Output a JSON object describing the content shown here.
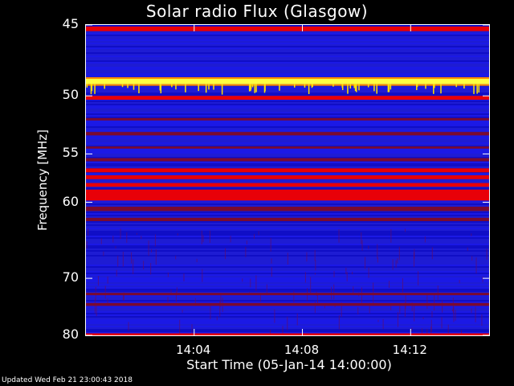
{
  "chart_data": {
    "type": "heatmap",
    "title": "Solar radio Flux (Glasgow)",
    "ylabel": "Frequency [MHz]",
    "xlabel": "Start Time (05-Jan-14 14:00:00)",
    "yticks": [
      "45",
      "50",
      "55",
      "60",
      "70",
      "80"
    ],
    "ytick_values": [
      45,
      50,
      55,
      60,
      70,
      80
    ],
    "ylim": [
      45,
      80
    ],
    "yscale": "reciprocal",
    "xticks": [
      "14:04",
      "14:08",
      "14:12"
    ],
    "xtick_values_min": [
      4,
      8,
      12
    ],
    "xlim_min": [
      0,
      14.9
    ],
    "colormap": [
      "#00007f",
      "#0000ff",
      "#7f0000",
      "#ff0000",
      "#ffff00"
    ],
    "bands": [
      {
        "f0": 45.1,
        "f1": 45.4,
        "level": "red"
      },
      {
        "f0": 48.7,
        "f1": 49.1,
        "level": "yellow"
      },
      {
        "f0": 50.0,
        "f1": 50.3,
        "level": "red"
      },
      {
        "f0": 51.8,
        "f1": 52.0,
        "level": "darkred"
      },
      {
        "f0": 53.0,
        "f1": 53.3,
        "level": "darkred"
      },
      {
        "f0": 54.3,
        "f1": 54.5,
        "level": "darkred"
      },
      {
        "f0": 55.4,
        "f1": 55.7,
        "level": "darkred"
      },
      {
        "f0": 56.4,
        "f1": 56.8,
        "level": "red"
      },
      {
        "f0": 57.1,
        "f1": 57.5,
        "level": "red"
      },
      {
        "f0": 57.9,
        "f1": 58.3,
        "level": "red"
      },
      {
        "f0": 58.6,
        "f1": 59.8,
        "level": "red"
      },
      {
        "f0": 60.5,
        "f1": 61.0,
        "level": "darkred"
      },
      {
        "f0": 61.8,
        "f1": 62.2,
        "level": "darkred"
      },
      {
        "f0": 72.3,
        "f1": 72.7,
        "level": "darkred"
      },
      {
        "f0": 74.0,
        "f1": 74.5,
        "level": "darkred"
      },
      {
        "f0": 79.6,
        "f1": 80.0,
        "level": "red"
      }
    ]
  },
  "footer": "Updated Wed Feb 21 23:00:43 2018"
}
